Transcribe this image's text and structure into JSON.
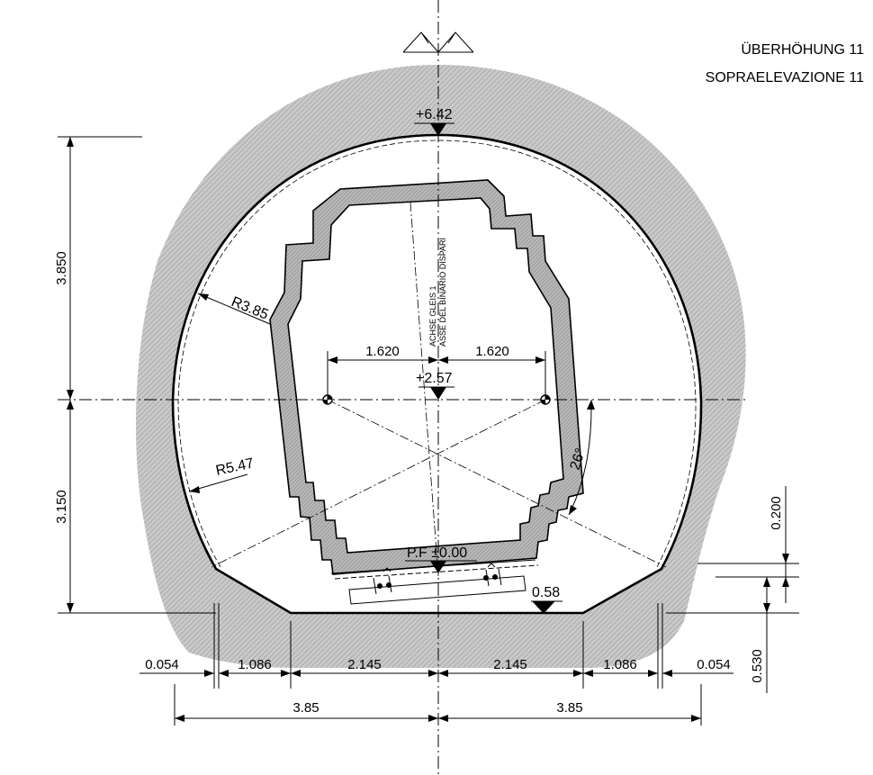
{
  "header": {
    "line1": "ÜBERHÖHUNG 11",
    "line2": "SOPRAELEVAZIONE 11"
  },
  "levels": {
    "crown": "+6.42",
    "centre": "+2.57",
    "rail": "P.F ±0.00",
    "floor": "0.58"
  },
  "radii": {
    "upper": "R3.85",
    "lower": "R5.47"
  },
  "angle": "26°",
  "axis_label": {
    "line1": "ACHSE GLEIS 1",
    "line2": "ASSE DEL BINARIO DISPARI"
  },
  "dimensions": {
    "height_upper": "3.850",
    "height_lower": "3.150",
    "centre_left": "1.620",
    "centre_right": "1.620",
    "right_small": "0.200",
    "right_bottom": "0.530",
    "bottom_row": [
      "0.054",
      "1.086",
      "2.145",
      "2.145",
      "1.086",
      "0.054"
    ],
    "half_width_left": "3.85",
    "half_width_right": "3.85"
  },
  "colors": {
    "rock_fill": "#bdbdbd",
    "vehicle_fill": "#a8a8a8",
    "line": "#000000"
  }
}
